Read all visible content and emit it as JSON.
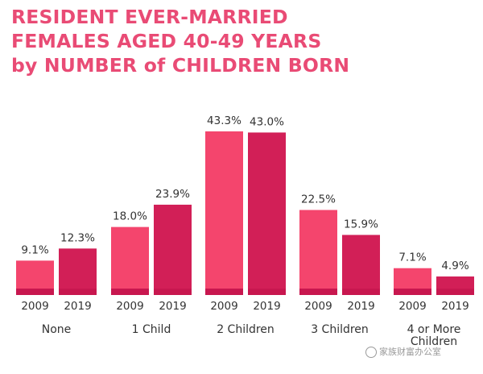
{
  "chart_data": {
    "type": "bar",
    "title_lines": [
      "RESIDENT EVER-MARRIED",
      "FEMALES AGED 40-49 YEARS",
      "by NUMBER of CHILDREN BORN"
    ],
    "categories": [
      "None",
      "1 Child",
      "2 Children",
      "3 Children",
      "4 or More Children"
    ],
    "series": [
      {
        "name": "2009",
        "values": [
          9.1,
          18.0,
          43.3,
          22.5,
          7.1
        ],
        "labels": [
          "9.1%",
          "18.0%",
          "43.3%",
          "22.5%",
          "7.1%"
        ]
      },
      {
        "name": "2019",
        "values": [
          12.3,
          23.9,
          43.0,
          15.9,
          4.9
        ],
        "labels": [
          "12.3%",
          "23.9%",
          "43.0%",
          "15.9%",
          "4.9%"
        ]
      }
    ],
    "ylim": [
      0,
      45
    ],
    "grid": false,
    "colors": {
      "2009": "#f4456d",
      "2019": "#d21f57",
      "band": "#c8174f",
      "title": "#e94b75"
    }
  },
  "watermark": "家族财富办公室"
}
